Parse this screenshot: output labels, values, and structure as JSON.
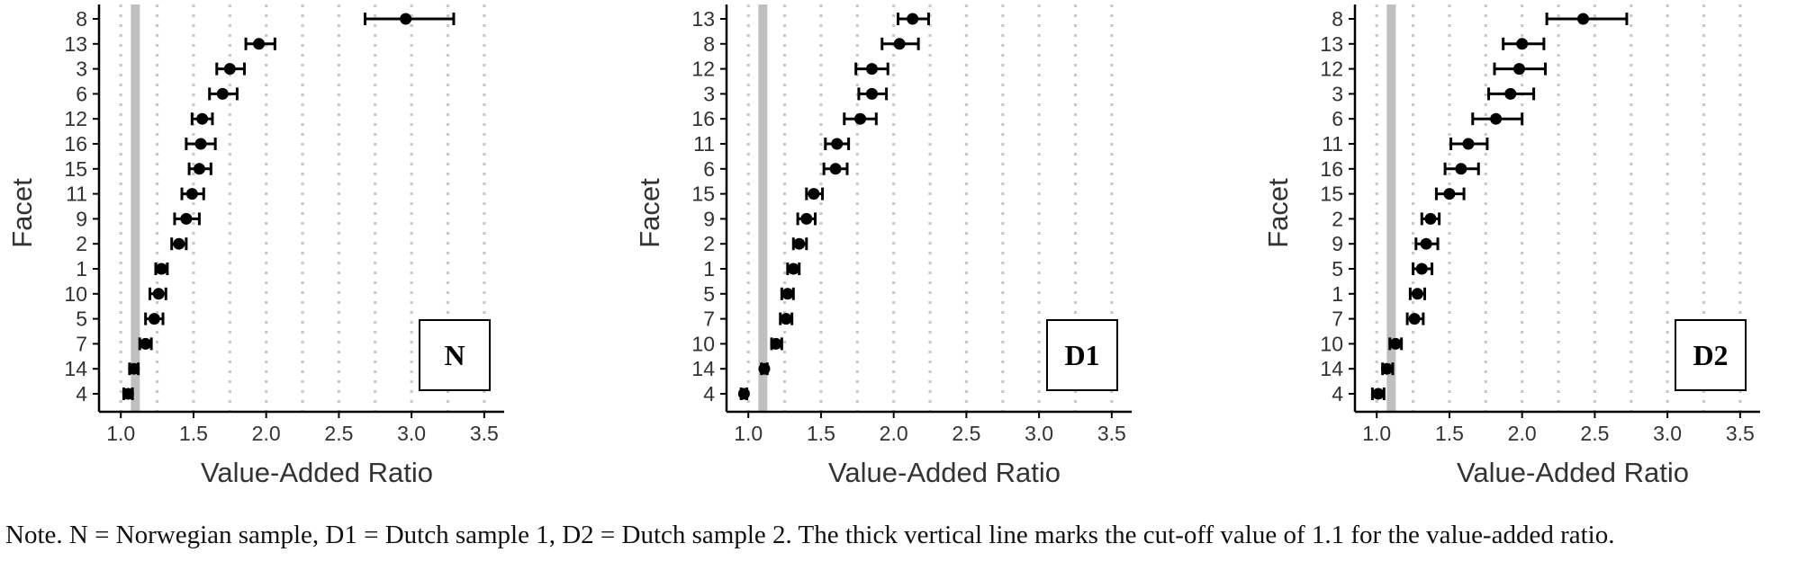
{
  "colors": {
    "cutoff_line": "#bfbfbf",
    "grid": "#c8c8c8",
    "point": "#000000",
    "axis": "#000000"
  },
  "chart_data": [
    {
      "type": "scatter",
      "panel_label": "N",
      "xlabel": "Value-Added Ratio",
      "ylabel": "Facet",
      "xlim": [
        0.85,
        3.6
      ],
      "xticks": [
        1.0,
        1.5,
        2.0,
        2.5,
        3.0,
        3.5
      ],
      "xtick_labels": [
        "1.0",
        "1.5",
        "2.0",
        "2.5",
        "3.0",
        "3.5"
      ],
      "grid": "vertical dotted",
      "cutoff": 1.1,
      "categories": [
        "8",
        "13",
        "3",
        "6",
        "12",
        "16",
        "15",
        "11",
        "9",
        "2",
        "1",
        "10",
        "5",
        "7",
        "14",
        "4"
      ],
      "values": [
        2.96,
        1.95,
        1.75,
        1.7,
        1.56,
        1.55,
        1.54,
        1.49,
        1.45,
        1.4,
        1.28,
        1.26,
        1.23,
        1.17,
        1.09,
        1.05
      ],
      "lower": [
        2.68,
        1.86,
        1.66,
        1.61,
        1.49,
        1.45,
        1.47,
        1.42,
        1.37,
        1.35,
        1.24,
        1.2,
        1.17,
        1.13,
        1.06,
        1.02
      ],
      "upper": [
        3.29,
        2.06,
        1.85,
        1.8,
        1.63,
        1.65,
        1.62,
        1.57,
        1.54,
        1.45,
        1.32,
        1.31,
        1.29,
        1.21,
        1.12,
        1.08
      ]
    },
    {
      "type": "scatter",
      "panel_label": "D1",
      "xlabel": "Value-Added Ratio",
      "ylabel": "Facet",
      "xlim": [
        0.85,
        3.6
      ],
      "xticks": [
        1.0,
        1.5,
        2.0,
        2.5,
        3.0,
        3.5
      ],
      "xtick_labels": [
        "1.0",
        "1.5",
        "2.0",
        "2.5",
        "3.0",
        "3.5"
      ],
      "grid": "vertical dotted",
      "cutoff": 1.1,
      "categories": [
        "13",
        "8",
        "12",
        "3",
        "16",
        "11",
        "6",
        "15",
        "9",
        "2",
        "1",
        "5",
        "7",
        "10",
        "14",
        "4"
      ],
      "values": [
        2.13,
        2.04,
        1.85,
        1.85,
        1.77,
        1.61,
        1.6,
        1.45,
        1.4,
        1.35,
        1.31,
        1.27,
        1.26,
        1.19,
        1.11,
        0.97
      ],
      "lower": [
        2.03,
        1.92,
        1.74,
        1.76,
        1.66,
        1.53,
        1.52,
        1.4,
        1.34,
        1.31,
        1.27,
        1.23,
        1.22,
        1.16,
        1.09,
        0.95
      ],
      "upper": [
        2.24,
        2.17,
        1.96,
        1.95,
        1.88,
        1.69,
        1.68,
        1.51,
        1.46,
        1.4,
        1.35,
        1.31,
        1.3,
        1.23,
        1.13,
        0.99
      ]
    },
    {
      "type": "scatter",
      "panel_label": "D2",
      "xlabel": "Value-Added Ratio",
      "ylabel": "Facet",
      "xlim": [
        0.85,
        3.6
      ],
      "xticks": [
        1.0,
        1.5,
        2.0,
        2.5,
        3.0,
        3.5
      ],
      "xtick_labels": [
        "1.0",
        "1.5",
        "2.0",
        "2.5",
        "3.0",
        "3.5"
      ],
      "grid": "vertical dotted",
      "cutoff": 1.1,
      "categories": [
        "8",
        "13",
        "12",
        "3",
        "6",
        "11",
        "16",
        "15",
        "2",
        "9",
        "5",
        "1",
        "7",
        "10",
        "14",
        "4"
      ],
      "values": [
        2.42,
        2.0,
        1.98,
        1.92,
        1.82,
        1.63,
        1.58,
        1.5,
        1.37,
        1.34,
        1.31,
        1.28,
        1.26,
        1.13,
        1.07,
        1.01
      ],
      "lower": [
        2.17,
        1.87,
        1.81,
        1.77,
        1.66,
        1.51,
        1.47,
        1.41,
        1.31,
        1.27,
        1.25,
        1.23,
        1.21,
        1.09,
        1.04,
        0.97
      ],
      "upper": [
        2.72,
        2.15,
        2.16,
        2.08,
        2.0,
        1.76,
        1.7,
        1.6,
        1.43,
        1.42,
        1.38,
        1.33,
        1.32,
        1.17,
        1.11,
        1.05
      ]
    }
  ],
  "note": "Note. N = Norwegian sample, D1 = Dutch sample 1, D2 = Dutch sample 2. The thick vertical line marks the cut-off value of 1.1 for the value-added ratio."
}
